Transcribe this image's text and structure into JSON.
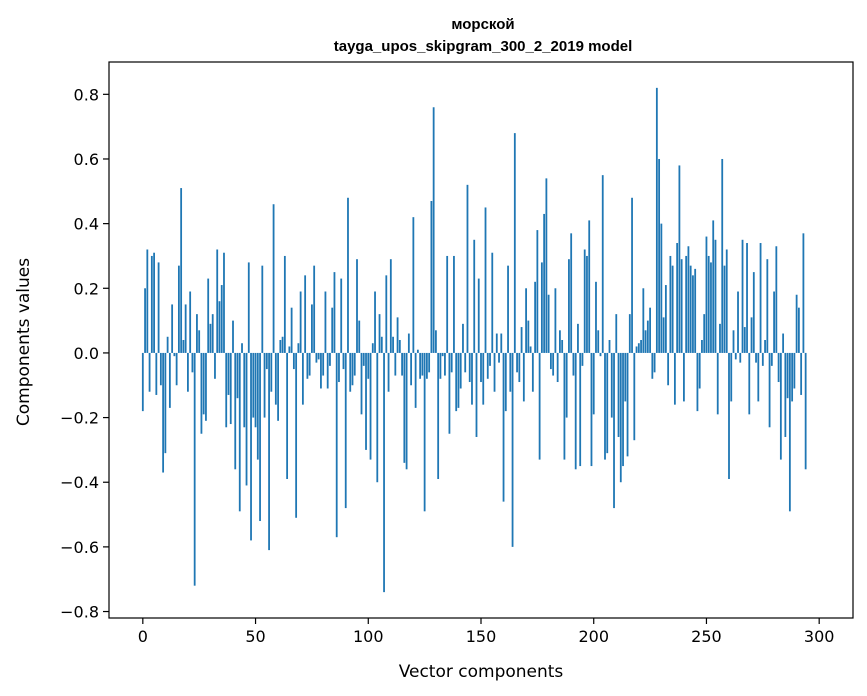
{
  "chart_data": {
    "type": "bar",
    "title": "морской",
    "subtitle": "tayga_upos_skipgram_300_2_2019 model",
    "xlabel": "Vector components",
    "ylabel": "Components values",
    "xlim": [
      -15,
      315
    ],
    "ylim": [
      -0.82,
      0.9
    ],
    "x_ticks": [
      0,
      50,
      100,
      150,
      200,
      250,
      300
    ],
    "x_tick_labels": [
      "0",
      "50",
      "100",
      "150",
      "200",
      "250",
      "300"
    ],
    "y_ticks": [
      0.8,
      0.6,
      0.4,
      0.2,
      0.0,
      -0.2,
      -0.4,
      -0.6,
      -0.8
    ],
    "y_tick_labels": [
      "0.8",
      "0.6",
      "0.4",
      "0.2",
      "0.0",
      "−0.2",
      "−0.4",
      "−0.6",
      "−0.8"
    ],
    "bar_color": "#1f77b4",
    "grid": false,
    "values": [
      -0.18,
      0.2,
      0.32,
      -0.12,
      0.3,
      0.31,
      -0.13,
      0.28,
      -0.1,
      -0.37,
      -0.31,
      0.05,
      -0.17,
      0.15,
      -0.01,
      -0.1,
      0.27,
      0.51,
      0.04,
      0.15,
      -0.12,
      0.19,
      -0.06,
      -0.72,
      0.12,
      0.07,
      -0.25,
      -0.19,
      -0.21,
      0.23,
      0.09,
      0.12,
      -0.08,
      0.32,
      0.16,
      0.21,
      0.31,
      -0.23,
      -0.13,
      -0.22,
      0.1,
      -0.36,
      -0.14,
      -0.49,
      0.03,
      -0.23,
      -0.41,
      0.28,
      -0.58,
      -0.2,
      -0.23,
      -0.33,
      -0.52,
      0.27,
      -0.2,
      -0.05,
      -0.61,
      -0.12,
      0.46,
      -0.16,
      -0.21,
      0.04,
      0.05,
      0.3,
      -0.39,
      0.02,
      0.14,
      -0.05,
      -0.51,
      0.03,
      0.19,
      -0.16,
      0.24,
      -0.08,
      -0.07,
      0.15,
      0.27,
      -0.03,
      -0.02,
      -0.11,
      -0.07,
      0.19,
      -0.11,
      -0.04,
      0.14,
      0.25,
      -0.57,
      -0.09,
      0.23,
      -0.05,
      -0.48,
      0.48,
      -0.12,
      -0.1,
      -0.07,
      0.29,
      0.1,
      -0.19,
      -0.04,
      -0.3,
      -0.08,
      -0.33,
      0.03,
      0.19,
      -0.4,
      0.12,
      0.05,
      -0.74,
      0.24,
      -0.12,
      0.29,
      0.05,
      -0.07,
      0.11,
      0.04,
      -0.07,
      -0.34,
      -0.36,
      0.06,
      -0.1,
      0.42,
      -0.17,
      0.01,
      -0.08,
      -0.07,
      -0.49,
      -0.08,
      -0.06,
      0.47,
      0.76,
      0.07,
      -0.39,
      -0.08,
      -0.01,
      -0.07,
      0.3,
      -0.25,
      -0.06,
      0.3,
      -0.18,
      -0.17,
      -0.11,
      0.09,
      -0.06,
      0.52,
      -0.09,
      -0.16,
      0.35,
      -0.26,
      0.23,
      -0.09,
      -0.16,
      0.45,
      -0.08,
      -0.04,
      0.31,
      -0.12,
      0.06,
      -0.03,
      0.06,
      -0.46,
      -0.18,
      0.27,
      -0.12,
      -0.6,
      0.68,
      -0.06,
      -0.09,
      0.08,
      -0.15,
      0.2,
      0.1,
      0.02,
      -0.12,
      0.22,
      0.38,
      -0.33,
      0.28,
      0.43,
      0.54,
      0.18,
      -0.05,
      -0.07,
      0.2,
      -0.09,
      0.07,
      0.04,
      -0.33,
      -0.2,
      0.29,
      0.37,
      -0.07,
      -0.36,
      0.09,
      -0.35,
      -0.04,
      0.32,
      0.3,
      0.41,
      -0.35,
      -0.19,
      0.22,
      0.07,
      -0.01,
      0.55,
      -0.33,
      -0.31,
      0.04,
      -0.2,
      -0.48,
      0.12,
      -0.26,
      -0.4,
      -0.35,
      -0.15,
      -0.32,
      0.12,
      0.48,
      -0.27,
      0.02,
      0.03,
      0.04,
      0.2,
      0.07,
      0.1,
      0.14,
      -0.08,
      -0.06,
      0.82,
      0.6,
      0.4,
      0.11,
      0.21,
      -0.1,
      0.3,
      0.27,
      -0.16,
      0.34,
      0.58,
      0.29,
      -0.15,
      0.3,
      0.33,
      0.27,
      0.24,
      0.26,
      -0.18,
      -0.11,
      0.04,
      0.12,
      0.36,
      0.3,
      0.28,
      0.41,
      0.35,
      -0.19,
      0.09,
      0.6,
      0.27,
      0.32,
      -0.39,
      -0.15,
      0.07,
      -0.02,
      0.19,
      -0.03,
      0.35,
      0.08,
      0.34,
      -0.19,
      0.11,
      0.25,
      -0.03,
      -0.15,
      0.34,
      -0.04,
      0.04,
      0.29,
      -0.23,
      -0.04,
      0.19,
      0.33,
      -0.09,
      -0.33,
      0.06,
      -0.26,
      -0.14,
      -0.49,
      -0.15,
      -0.11,
      0.18,
      0.14,
      -0.13,
      0.37,
      -0.36
    ]
  }
}
